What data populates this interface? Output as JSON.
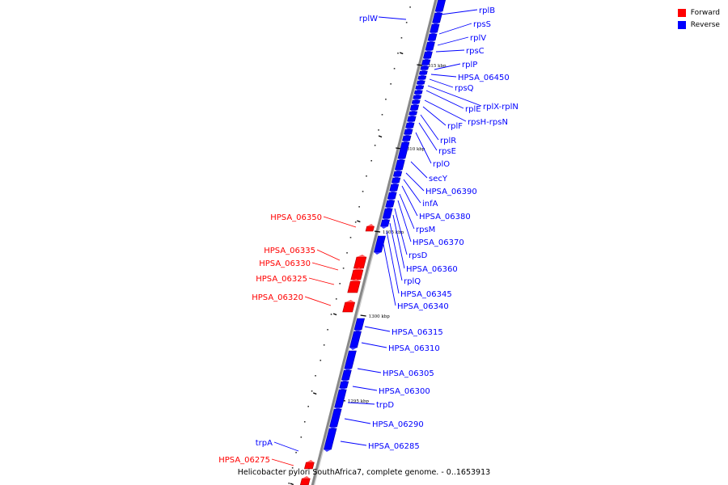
{
  "caption": "Helicobacter pylori SouthAfrica7, complete genome. - 0..1653913",
  "legend": [
    {
      "label": "Forward",
      "color": "#ff0000"
    },
    {
      "label": "Reverse",
      "color": "#0000ff"
    }
  ],
  "colors": {
    "forward": "#ff0000",
    "reverse": "#0000ff",
    "axis": "#888888"
  },
  "scale_labels": [
    "1315 kbp",
    "1310 kbp",
    "1305 kbp",
    "1300 kbp",
    "1295 kbp"
  ],
  "reverse_genes": [
    "rplB",
    "rpsS",
    "rplV",
    "rpsC",
    "rplP",
    "HPSA_06450",
    "rpsQ",
    "rplX-rplN",
    "rplE",
    "rpsH-rpsN",
    "rplF",
    "rplR",
    "rpsE",
    "rplO",
    "secY",
    "HPSA_06390",
    "infA",
    "HPSA_06380",
    "rpsM",
    "HPSA_06370",
    "rpsD",
    "HPSA_06360",
    "rplQ",
    "HPSA_06345",
    "HPSA_06340",
    "HPSA_06315",
    "HPSA_06310",
    "HPSA_06305",
    "HPSA_06300",
    "trpD",
    "HPSA_06290",
    "HPSA_06285",
    "rplW"
  ],
  "forward_genes": [
    "HPSA_06350",
    "HPSA_06335",
    "HPSA_06330",
    "HPSA_06325",
    "HPSA_06320",
    "trpA",
    "HPSA_06275"
  ]
}
